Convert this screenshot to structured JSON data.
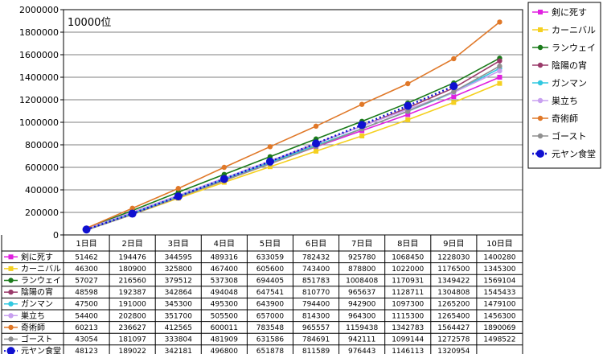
{
  "chart_data": {
    "type": "line",
    "annotation": "10000位",
    "ylim": [
      0,
      2000000
    ],
    "yticks": [
      0,
      200000,
      400000,
      600000,
      800000,
      1000000,
      1200000,
      1400000,
      1600000,
      1800000,
      2000000
    ],
    "ytick_labels": [
      "0",
      "200000",
      "400000",
      "600000",
      "800000",
      "1000000",
      "1200000",
      "1400000",
      "1600000",
      "1800000",
      "2000000"
    ],
    "categories": [
      "1日目",
      "2日目",
      "3日目",
      "4日目",
      "5日目",
      "6日目",
      "7日目",
      "8日目",
      "9日目",
      "10日目"
    ],
    "grid": true,
    "legend_position": "right",
    "data_table": true,
    "series": [
      {
        "name": "剣に死す",
        "color": "#e020e0",
        "marker": "square",
        "dash": "solid",
        "values": [
          51462,
          194476,
          344595,
          489316,
          633059,
          782432,
          925780,
          1068450,
          1228030,
          1400280
        ]
      },
      {
        "name": "カーニバル",
        "color": "#f5d020",
        "marker": "square",
        "dash": "solid",
        "values": [
          46300,
          180900,
          325800,
          467400,
          605600,
          743400,
          878800,
          1022000,
          1176500,
          1345300
        ]
      },
      {
        "name": "ランウェイ",
        "color": "#1a7a1a",
        "marker": "circle",
        "dash": "solid",
        "values": [
          57027,
          216560,
          379512,
          537308,
          694405,
          851783,
          1008408,
          1170931,
          1349422,
          1569104
        ]
      },
      {
        "name": "陰陽の宵",
        "color": "#9a3a6a",
        "marker": "circle",
        "dash": "solid",
        "values": [
          48598,
          192387,
          342864,
          494048,
          647541,
          810770,
          965637,
          1128711,
          1304808,
          1545433
        ]
      },
      {
        "name": "ガンマン",
        "color": "#30c8e0",
        "marker": "circle",
        "dash": "solid",
        "values": [
          47500,
          191000,
          345300,
          495300,
          643900,
          794400,
          942900,
          1097300,
          1265200,
          1479100
        ]
      },
      {
        "name": "巣立ち",
        "color": "#c8a0f0",
        "marker": "circle",
        "dash": "solid",
        "values": [
          54400,
          202800,
          351700,
          505500,
          657000,
          814300,
          964300,
          1115300,
          1265400,
          1456300
        ]
      },
      {
        "name": "奇術師",
        "color": "#e07828",
        "marker": "circle",
        "dash": "solid",
        "values": [
          60213,
          236627,
          412565,
          600011,
          783548,
          965557,
          1159438,
          1342783,
          1564427,
          1890069
        ]
      },
      {
        "name": "ゴースト",
        "color": "#909090",
        "marker": "circle",
        "dash": "solid",
        "values": [
          43054,
          181097,
          333804,
          481909,
          631586,
          784691,
          942111,
          1099144,
          1272578,
          1498522
        ]
      },
      {
        "name": "元ヤン食堂",
        "color": "#1010d0",
        "marker": "bigcircle",
        "dash": "dotted",
        "values": [
          48123,
          189022,
          342181,
          496800,
          651878,
          811589,
          976443,
          1146113,
          1320954,
          null
        ]
      }
    ]
  }
}
